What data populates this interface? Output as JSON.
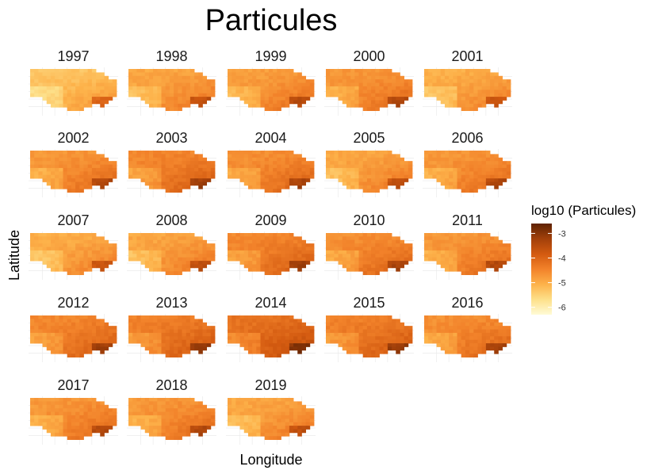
{
  "chart_data": {
    "type": "heatmap",
    "title": "Particules",
    "xlabel": "Longitude",
    "ylabel": "Latitude",
    "panels": [
      "1997",
      "1998",
      "1999",
      "2000",
      "2001",
      "2002",
      "2003",
      "2004",
      "2005",
      "2006",
      "2007",
      "2008",
      "2009",
      "2010",
      "2011",
      "2012",
      "2013",
      "2014",
      "2015",
      "2016",
      "2017",
      "2018",
      "2019"
    ],
    "panel_mean_log10": [
      -4.9,
      -4.5,
      -4.4,
      -4.3,
      -4.6,
      -4.3,
      -4.1,
      -4.2,
      -4.5,
      -4.3,
      -4.6,
      -4.5,
      -4.1,
      -4.2,
      -4.3,
      -4.1,
      -4.0,
      -3.8,
      -4.0,
      -4.2,
      -4.3,
      -4.3,
      -4.5
    ],
    "legend": {
      "title": "log10 (Particules)",
      "ticks": [
        -3,
        -4,
        -5,
        -6
      ],
      "range": [
        -6.3,
        -2.6
      ],
      "colors": [
        "#fffbd6",
        "#fde08a",
        "#fdb24a",
        "#f2822a",
        "#d35a10",
        "#a2400a",
        "#5e2203"
      ],
      "position": "right"
    }
  }
}
